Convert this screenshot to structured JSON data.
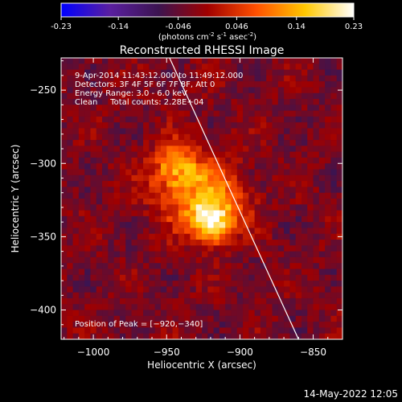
{
  "chart_data": {
    "type": "heatmap",
    "title": "Reconstructed RHESSI Image",
    "colorbar": {
      "min": -0.23,
      "max": 0.23,
      "ticks": [
        -0.23,
        -0.14,
        -0.046,
        0.046,
        0.14,
        0.23
      ],
      "tick_labels": [
        "-0.23",
        "-0.14",
        "-0.046",
        "0.046",
        "0.14",
        "0.23"
      ],
      "unit_prefix": "(photons cm",
      "unit_exp1": "-2",
      "unit_mid": " s",
      "unit_exp2": "-1",
      "unit_mid2": " asec",
      "unit_exp3": "-2",
      "unit_suffix": ")",
      "colors": [
        "#0000ff",
        "#5a1fa0",
        "#3c1450",
        "#a00000",
        "#ff5000",
        "#ffc800",
        "#ffffff"
      ]
    },
    "xlabel": "Heliocentric X (arcsec)",
    "ylabel": "Heliocentric Y (arcsec)",
    "xlim": [
      -1022,
      -830
    ],
    "ylim": [
      -420,
      -228
    ],
    "xticks": [
      -1000,
      -950,
      -900,
      -850
    ],
    "xtick_labels": [
      "−1000",
      "−950",
      "−900",
      "−850"
    ],
    "yticks": [
      -250,
      -300,
      -350,
      -400
    ],
    "ytick_labels": [
      "−250",
      "−300",
      "−350",
      "−400"
    ],
    "annotations": [
      "9-Apr-2014 11:43:12.000 to 11:49:12.000",
      "Detectors: 3F 4F 5F 6F 7F 8F, Att 0",
      "Energy Range: 3.0 - 6.0 keV",
      "Clean     Total counts: 2.28E+04"
    ],
    "peak_label": "Position of Peak = [−920,−340]",
    "peak": {
      "x": -920,
      "y": -340,
      "value": 0.23
    },
    "limb_line": [
      {
        "x": -948,
        "y": -228
      },
      {
        "x": -860,
        "y": -420
      }
    ],
    "sources": [
      {
        "x": -920,
        "y": -340,
        "amp": 0.23,
        "sigma": 10
      },
      {
        "x": -935,
        "y": -315,
        "amp": 0.14,
        "sigma": 18
      },
      {
        "x": -945,
        "y": -300,
        "amp": 0.08,
        "sigma": 10
      },
      {
        "x": -905,
        "y": -325,
        "amp": 0.07,
        "sigma": 12
      }
    ],
    "background": {
      "base": -0.03,
      "noise_amp": 0.03
    },
    "grid": false
  },
  "footer": {
    "date": "14-May-2022 12:05"
  }
}
